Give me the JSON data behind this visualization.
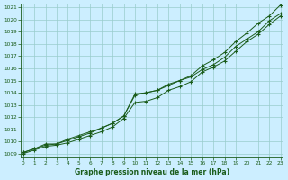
{
  "xlabel": "Graphe pression niveau de la mer (hPa)",
  "background_color": "#cceeff",
  "grid_color": "#99cccc",
  "line_color": "#1a5c1a",
  "marker": "+",
  "xmin": 0,
  "xmax": 23,
  "ymin": 1009,
  "ymax": 1021,
  "yticks": [
    1009,
    1010,
    1011,
    1012,
    1013,
    1014,
    1015,
    1016,
    1017,
    1018,
    1019,
    1020,
    1021
  ],
  "xticks": [
    0,
    1,
    2,
    3,
    4,
    5,
    6,
    7,
    8,
    9,
    10,
    11,
    12,
    13,
    14,
    15,
    16,
    17,
    18,
    19,
    20,
    21,
    22,
    23
  ],
  "series": {
    "line1": [
      1009.1,
      1009.4,
      1009.8,
      1009.8,
      1010.2,
      1010.5,
      1010.8,
      1011.1,
      1011.5,
      1012.1,
      1013.9,
      1014.0,
      1014.2,
      1014.6,
      1015.0,
      1015.4,
      1016.2,
      1016.7,
      1017.3,
      1018.2,
      1018.9,
      1019.7,
      1020.3,
      1021.2
    ],
    "line2": [
      1009.1,
      1009.4,
      1009.7,
      1009.8,
      1010.1,
      1010.4,
      1010.7,
      1011.1,
      1011.5,
      1012.1,
      1013.8,
      1014.0,
      1014.2,
      1014.7,
      1015.0,
      1015.3,
      1015.9,
      1016.3,
      1016.9,
      1017.8,
      1018.4,
      1019.0,
      1019.9,
      1020.5
    ],
    "line3": [
      1009.0,
      1009.3,
      1009.6,
      1009.7,
      1009.9,
      1010.2,
      1010.5,
      1010.8,
      1011.2,
      1011.9,
      1013.2,
      1013.3,
      1013.6,
      1014.2,
      1014.5,
      1014.9,
      1015.7,
      1016.1,
      1016.6,
      1017.4,
      1018.2,
      1018.8,
      1019.6,
      1020.3
    ]
  }
}
